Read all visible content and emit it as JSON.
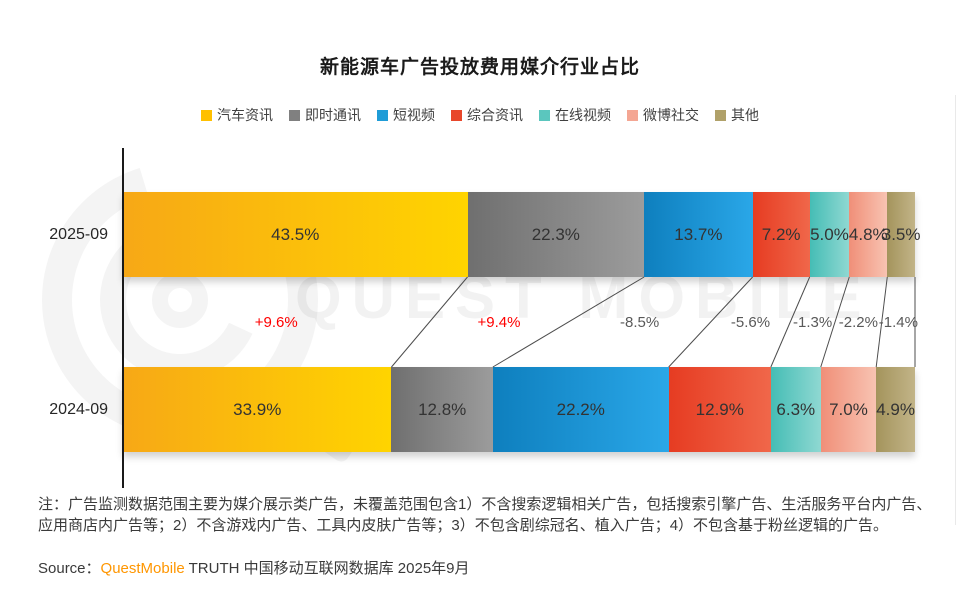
{
  "title": "新能源车广告投放费用媒介行业占比",
  "watermark": {
    "text": "QUEST MOBILE"
  },
  "legend": [
    {
      "label": "汽车资讯",
      "color": "#FFC000"
    },
    {
      "label": "即时通讯",
      "color": "#808080"
    },
    {
      "label": "短视频",
      "color": "#1F9CD7"
    },
    {
      "label": "综合资讯",
      "color": "#E8472B"
    },
    {
      "label": "在线视频",
      "color": "#5BC6BE"
    },
    {
      "label": "微博社交",
      "color": "#F4A693"
    },
    {
      "label": "其他",
      "color": "#B0A169"
    }
  ],
  "chart_data": {
    "type": "bar",
    "subtype": "stacked-horizontal",
    "unit": "%",
    "categories": [
      "2025-09",
      "2024-09"
    ],
    "series": [
      {
        "name": "汽车资讯",
        "values": [
          43.5,
          33.9
        ],
        "change": "+9.6%",
        "color_from": "#F7A816",
        "color_to": "#FFD400"
      },
      {
        "name": "即时通讯",
        "values": [
          22.3,
          12.8
        ],
        "change": "+9.4%",
        "color_from": "#6F6F6F",
        "color_to": "#9C9C9C"
      },
      {
        "name": "短视频",
        "values": [
          13.7,
          22.2
        ],
        "change": "-8.5%",
        "color_from": "#0E7FBE",
        "color_to": "#2AA7E8"
      },
      {
        "name": "综合资讯",
        "values": [
          7.2,
          12.9
        ],
        "change": "-5.6%",
        "color_from": "#E63C22",
        "color_to": "#F0674A"
      },
      {
        "name": "在线视频",
        "values": [
          5.0,
          6.3
        ],
        "change": "-1.3%",
        "color_from": "#45BDB5",
        "color_to": "#8FD8D2"
      },
      {
        "name": "微博社交",
        "values": [
          4.8,
          7.0
        ],
        "change": "-2.2%",
        "color_from": "#F08F78",
        "color_to": "#F8C3B2"
      },
      {
        "name": "其他",
        "values": [
          3.5,
          4.9
        ],
        "change": "-1.4%",
        "color_from": "#A4945C",
        "color_to": "#C2B488"
      }
    ],
    "change_positive_color": "#FF0000",
    "change_negative_color": "#595959",
    "legend_position": "top",
    "grid": false
  },
  "note": "注：广告监测数据范围主要为媒介展示类广告，未覆盖范围包含1）不含搜索逻辑相关广告，包括搜索引擎广告、生活服务平台内广告、应用商店内广告等；2）不含游戏内广告、工具内皮肤广告等；3）不包含剧综冠名、植入广告；4）不包含基于粉丝逻辑的广告。",
  "source": {
    "prefix": "Source：",
    "brand": "QuestMobile",
    "rest": " TRUTH 中国移动互联网数据库 2025年9月",
    "brand_color": "#FF9600"
  }
}
